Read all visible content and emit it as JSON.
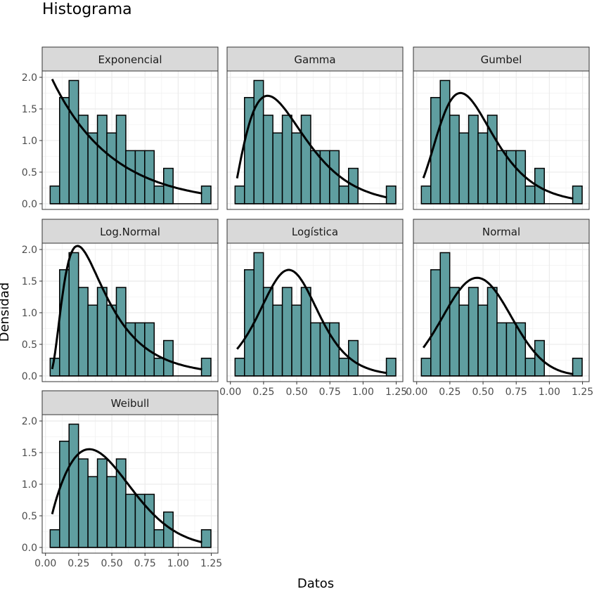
{
  "chart_data": {
    "type": "bar",
    "title": "Histograma",
    "xlabel": "Datos",
    "ylabel": "Densidad",
    "xlim": [
      -0.025,
      1.3
    ],
    "ylim": [
      -0.09,
      2.1
    ],
    "x_ticks": [
      "0.00",
      "0.25",
      "0.50",
      "0.75",
      "1.00",
      "1.25"
    ],
    "x_tick_values": [
      0,
      0.25,
      0.5,
      0.75,
      1,
      1.25
    ],
    "y_ticks": [
      "0.0",
      "0.5",
      "1.0",
      "1.5",
      "2.0"
    ],
    "y_tick_values": [
      0,
      0.5,
      1,
      1.5,
      2
    ],
    "grid": true,
    "histogram": {
      "bin_start": 0.035,
      "bin_width": 0.0713,
      "densities": [
        0.28,
        1.68,
        1.95,
        1.4,
        1.12,
        1.4,
        1.12,
        1.4,
        0.84,
        0.84,
        0.84,
        0.28,
        0.56,
        0,
        0,
        0,
        0.28
      ],
      "fill": "#5f9ea0",
      "stroke": "#000000"
    },
    "curve_range": [
      0.05,
      1.18
    ],
    "panels": [
      {
        "label": "Exponencial",
        "dist": "exponential",
        "params": {
          "rate": 2.2
        }
      },
      {
        "label": "Gamma",
        "dist": "gamma",
        "params": {
          "shape": 2.6,
          "rate": 5.7
        }
      },
      {
        "label": "Gumbel",
        "dist": "gumbel",
        "params": {
          "mu": 0.33,
          "beta": 0.21
        }
      },
      {
        "label": "Log.Normal",
        "dist": "lognormal",
        "params": {
          "meanlog": -0.998,
          "sdlog": 0.65
        }
      },
      {
        "label": "Logística",
        "dist": "logistic",
        "params": {
          "location": 0.44,
          "scale": 0.149
        }
      },
      {
        "label": "Normal",
        "dist": "normal",
        "params": {
          "mean": 0.455,
          "sd": 0.257
        }
      },
      {
        "label": "Weibull",
        "dist": "weibull",
        "params": {
          "shape": 1.8,
          "scale": 0.518
        }
      }
    ]
  }
}
